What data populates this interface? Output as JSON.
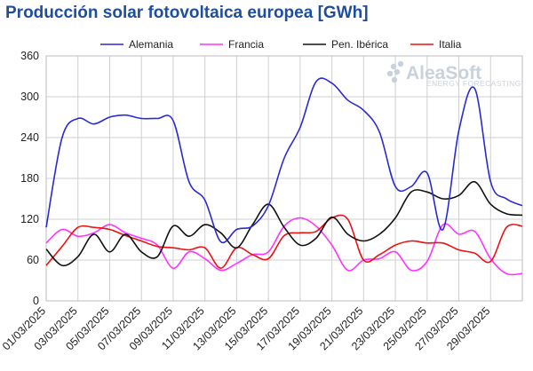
{
  "chart_data": {
    "type": "line",
    "title": "Producción solar fotovoltaica europea [GWh]",
    "xlabel": "",
    "ylabel": "",
    "ylim": [
      0,
      360
    ],
    "yticks": [
      0,
      60,
      120,
      180,
      240,
      300,
      360
    ],
    "grid": true,
    "legend_position": "top",
    "x_tick_labels": [
      "01/03/2025",
      "03/03/2025",
      "05/03/2025",
      "07/03/2025",
      "09/03/2025",
      "11/03/2025",
      "13/03/2025",
      "15/03/2025",
      "17/03/2025",
      "19/03/2025",
      "21/03/2025",
      "23/03/2025",
      "25/03/2025",
      "27/03/2025",
      "29/03/2025"
    ],
    "x": [
      "01/03/2025",
      "02/03/2025",
      "03/03/2025",
      "04/03/2025",
      "05/03/2025",
      "06/03/2025",
      "07/03/2025",
      "08/03/2025",
      "09/03/2025",
      "10/03/2025",
      "11/03/2025",
      "12/03/2025",
      "13/03/2025",
      "14/03/2025",
      "15/03/2025",
      "16/03/2025",
      "17/03/2025",
      "18/03/2025",
      "19/03/2025",
      "20/03/2025",
      "21/03/2025",
      "22/03/2025",
      "23/03/2025",
      "24/03/2025",
      "25/03/2025",
      "26/03/2025",
      "27/03/2025",
      "28/03/2025",
      "29/03/2025",
      "30/03/2025",
      "31/03/2025"
    ],
    "series": [
      {
        "name": "Alemania",
        "color": "#2a2ad4",
        "values": [
          108,
          240,
          268,
          260,
          270,
          273,
          268,
          268,
          265,
          175,
          148,
          87,
          105,
          110,
          140,
          210,
          255,
          322,
          320,
          295,
          280,
          248,
          168,
          168,
          188,
          105,
          250,
          312,
          175,
          150,
          140
        ]
      },
      {
        "name": "Francia",
        "color": "#ff33ff",
        "values": [
          85,
          105,
          95,
          100,
          112,
          100,
          92,
          82,
          48,
          72,
          62,
          45,
          55,
          68,
          72,
          110,
          122,
          110,
          82,
          45,
          60,
          62,
          72,
          45,
          58,
          112,
          98,
          102,
          62,
          40,
          40
        ]
      },
      {
        "name": "Pen. Ibérica",
        "color": "#111111",
        "values": [
          76,
          52,
          65,
          98,
          72,
          98,
          72,
          65,
          110,
          95,
          112,
          100,
          78,
          112,
          142,
          108,
          82,
          92,
          123,
          98,
          88,
          98,
          122,
          160,
          160,
          150,
          155,
          175,
          142,
          128,
          126
        ]
      },
      {
        "name": "Italia",
        "color": "#ee1111",
        "values": [
          52,
          80,
          108,
          108,
          105,
          96,
          88,
          80,
          78,
          75,
          78,
          48,
          78,
          68,
          62,
          96,
          100,
          102,
          122,
          120,
          60,
          68,
          82,
          88,
          85,
          85,
          75,
          70,
          58,
          108,
          110
        ]
      }
    ]
  },
  "logo": {
    "name": "AleaSoft",
    "tagline": "ENERGY FORECASTING"
  }
}
